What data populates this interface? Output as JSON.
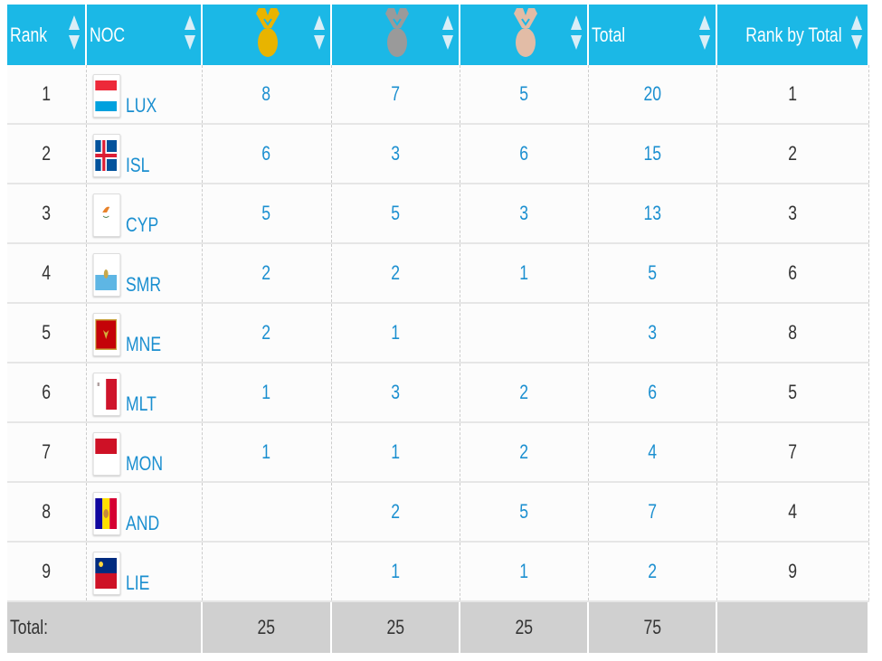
{
  "header": {
    "rank": "Rank",
    "noc": "NOC",
    "gold": "gold-medal-icon",
    "silver": "silver-medal-icon",
    "bronze": "bronze-medal-icon",
    "total": "Total",
    "rank_by_total": "Rank by Total"
  },
  "colors": {
    "header": "#1bb8e6",
    "gold": "#e8b400",
    "silver": "#9a9a9a",
    "bronze": "#e2bca6",
    "link": "#1b8fd0"
  },
  "rows": [
    {
      "rank": "1",
      "noc": "LUX",
      "gold": "8",
      "silver": "7",
      "bronze": "5",
      "total": "20",
      "rank_by_total": "1"
    },
    {
      "rank": "2",
      "noc": "ISL",
      "gold": "6",
      "silver": "3",
      "bronze": "6",
      "total": "15",
      "rank_by_total": "2"
    },
    {
      "rank": "3",
      "noc": "CYP",
      "gold": "5",
      "silver": "5",
      "bronze": "3",
      "total": "13",
      "rank_by_total": "3"
    },
    {
      "rank": "4",
      "noc": "SMR",
      "gold": "2",
      "silver": "2",
      "bronze": "1",
      "total": "5",
      "rank_by_total": "6"
    },
    {
      "rank": "5",
      "noc": "MNE",
      "gold": "2",
      "silver": "1",
      "bronze": "",
      "total": "3",
      "rank_by_total": "8"
    },
    {
      "rank": "6",
      "noc": "MLT",
      "gold": "1",
      "silver": "3",
      "bronze": "2",
      "total": "6",
      "rank_by_total": "5"
    },
    {
      "rank": "7",
      "noc": "MON",
      "gold": "1",
      "silver": "1",
      "bronze": "2",
      "total": "4",
      "rank_by_total": "7"
    },
    {
      "rank": "8",
      "noc": "AND",
      "gold": "",
      "silver": "2",
      "bronze": "5",
      "total": "7",
      "rank_by_total": "4"
    },
    {
      "rank": "9",
      "noc": "LIE",
      "gold": "",
      "silver": "1",
      "bronze": "1",
      "total": "2",
      "rank_by_total": "9"
    }
  ],
  "totals": {
    "label": "Total:",
    "gold": "25",
    "silver": "25",
    "bronze": "25",
    "total": "75",
    "rank_by_total": ""
  }
}
